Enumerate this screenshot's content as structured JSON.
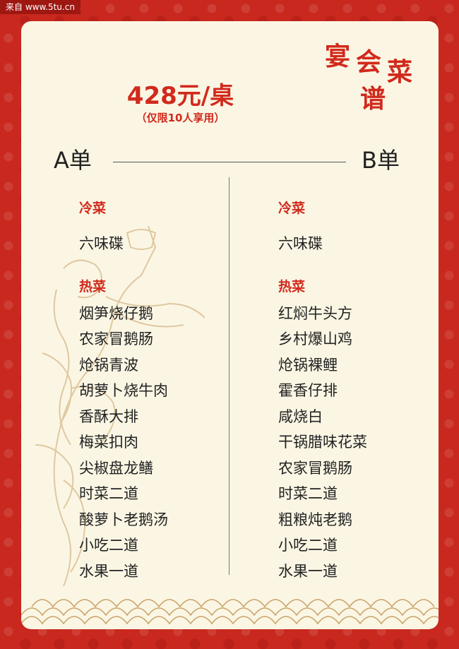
{
  "watermark": "来自 www.5tu.cn",
  "title": {
    "c1": "宴",
    "c2": "会",
    "c3": "菜",
    "c4": "谱"
  },
  "price": "428元/桌",
  "price_note": "（仅限10人享用）",
  "menu_a": {
    "title": "A单",
    "cold_label": "冷菜",
    "cold_items": [
      "六味碟"
    ],
    "hot_label": "热菜",
    "hot_items": [
      "烟笋烧仔鹅",
      "农家冒鹅肠",
      "炝锅青波",
      "胡萝卜烧牛肉",
      "香酥大排",
      "梅菜扣肉",
      "尖椒盘龙鳝",
      "时菜二道",
      "酸萝卜老鹅汤",
      "小吃二道",
      "水果一道"
    ]
  },
  "menu_b": {
    "title": "B单",
    "cold_label": "冷菜",
    "cold_items": [
      "六味碟"
    ],
    "hot_label": "热菜",
    "hot_items": [
      "红焖牛头方",
      "乡村爆山鸡",
      "炝锅裸鲤",
      "霍香仔排",
      "咸烧白",
      "干锅腊味花菜",
      "农家冒鹅肠",
      "时菜二道",
      "粗粮炖老鹅",
      "小吃二道",
      "水果一道"
    ]
  },
  "colors": {
    "background": "#c8281e",
    "panel": "#fbf6e4",
    "accent": "#d12a1d",
    "figure": "#c9a36a"
  }
}
